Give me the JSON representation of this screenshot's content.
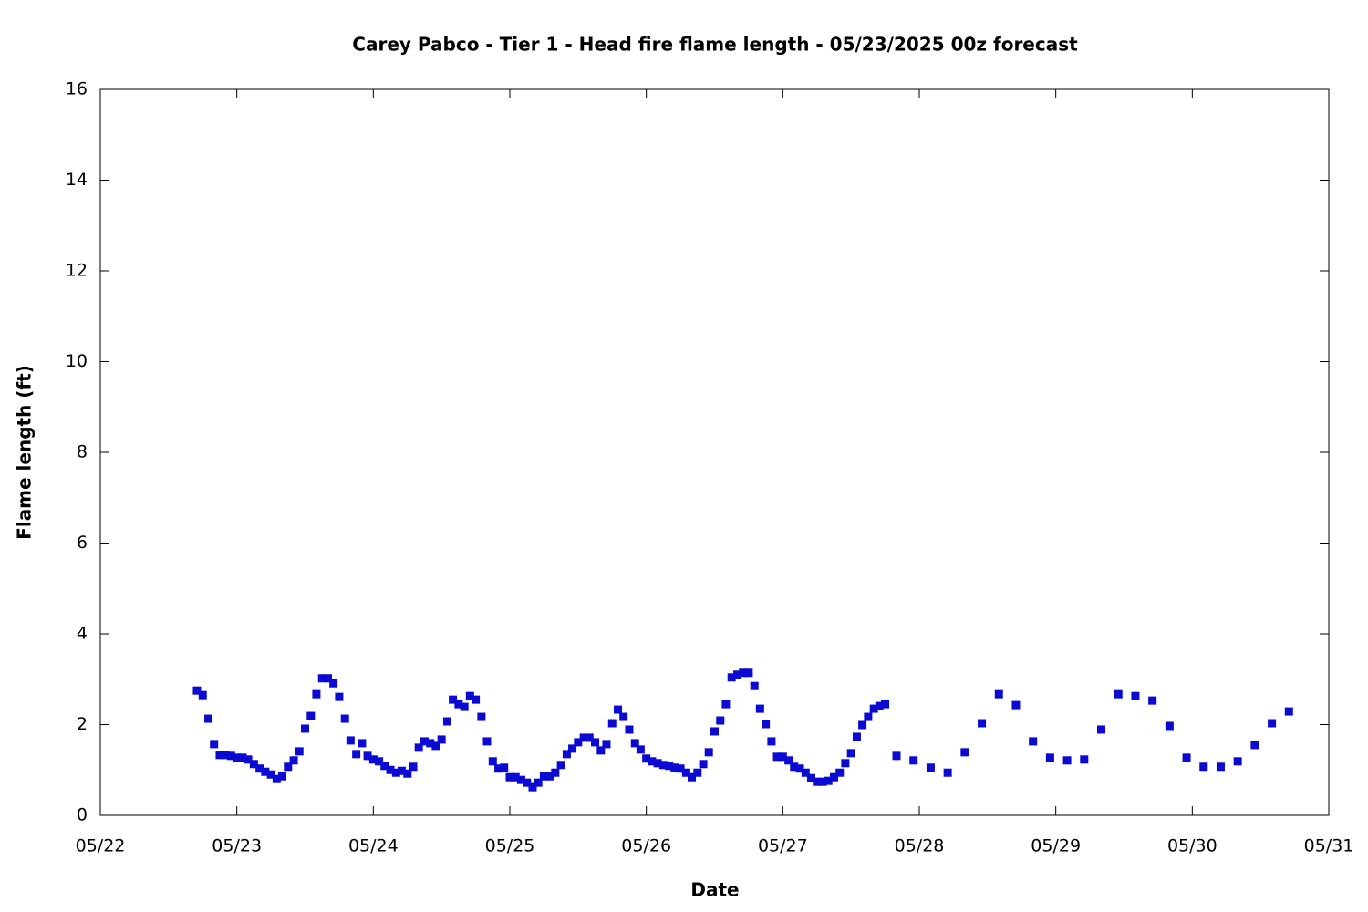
{
  "chart_data": {
    "type": "scatter",
    "title": "Carey Pabco - Tier 1 - Head fire flame length - 05/23/2025 00z forecast",
    "x_label": "Date",
    "y_label": "Flame length (ft)",
    "color": "#0a0ad2",
    "x": [
      22.708,
      22.75,
      22.792,
      22.833,
      22.875,
      22.917,
      22.958,
      23,
      23.042,
      23.083,
      23.125,
      23.167,
      23.208,
      23.25,
      23.292,
      23.333,
      23.375,
      23.417,
      23.458,
      23.5,
      23.542,
      23.583,
      23.625,
      23.667,
      23.708,
      23.75,
      23.792,
      23.833,
      23.875,
      23.917,
      23.958,
      24,
      24.042,
      24.083,
      24.125,
      24.167,
      24.208,
      24.25,
      24.292,
      24.333,
      24.375,
      24.417,
      24.458,
      24.5,
      24.542,
      24.583,
      24.625,
      24.667,
      24.708,
      24.75,
      24.792,
      24.833,
      24.875,
      24.917,
      24.958,
      25,
      25.042,
      25.083,
      25.125,
      25.167,
      25.208,
      25.25,
      25.292,
      25.333,
      25.375,
      25.417,
      25.458,
      25.5,
      25.542,
      25.583,
      25.625,
      25.667,
      25.708,
      25.75,
      25.792,
      25.833,
      25.875,
      25.917,
      25.958,
      26,
      26.042,
      26.083,
      26.125,
      26.167,
      26.208,
      26.25,
      26.292,
      26.333,
      26.375,
      26.417,
      26.458,
      26.5,
      26.542,
      26.583,
      26.625,
      26.667,
      26.708,
      26.75,
      26.792,
      26.833,
      26.875,
      26.917,
      26.958,
      27,
      27.042,
      27.083,
      27.125,
      27.167,
      27.208,
      27.25,
      27.292,
      27.333,
      27.375,
      27.417,
      27.458,
      27.5,
      27.542,
      27.583,
      27.625,
      27.667,
      27.708,
      27.75,
      27.833,
      27.958,
      28.083,
      28.208,
      28.333,
      28.458,
      28.583,
      28.708,
      28.833,
      28.958,
      29.083,
      29.208,
      29.333,
      29.458,
      29.583,
      29.708,
      29.833,
      29.958,
      30.083,
      30.208,
      30.333,
      30.458,
      30.583,
      30.708
    ],
    "values": [
      2.75,
      2.65,
      2.13,
      1.57,
      1.33,
      1.33,
      1.31,
      1.27,
      1.27,
      1.23,
      1.13,
      1.03,
      0.96,
      0.9,
      0.8,
      0.86,
      1.07,
      1.21,
      1.41,
      1.91,
      2.19,
      2.67,
      3.02,
      3.02,
      2.91,
      2.61,
      2.13,
      1.65,
      1.35,
      1.59,
      1.31,
      1.23,
      1.19,
      1.09,
      1.0,
      0.94,
      0.98,
      0.92,
      1.07,
      1.49,
      1.63,
      1.59,
      1.53,
      1.67,
      2.07,
      2.55,
      2.45,
      2.39,
      2.63,
      2.55,
      2.17,
      1.63,
      1.19,
      1.03,
      1.05,
      0.84,
      0.84,
      0.78,
      0.72,
      0.62,
      0.72,
      0.86,
      0.86,
      0.94,
      1.11,
      1.35,
      1.47,
      1.61,
      1.71,
      1.71,
      1.61,
      1.43,
      1.57,
      2.03,
      2.33,
      2.17,
      1.89,
      1.59,
      1.45,
      1.25,
      1.19,
      1.15,
      1.11,
      1.09,
      1.05,
      1.03,
      0.94,
      0.84,
      0.94,
      1.13,
      1.39,
      1.85,
      2.09,
      2.45,
      3.04,
      3.1,
      3.14,
      3.14,
      2.85,
      2.35,
      2.01,
      1.63,
      1.29,
      1.29,
      1.21,
      1.07,
      1.03,
      0.94,
      0.82,
      0.74,
      0.74,
      0.76,
      0.84,
      0.94,
      1.15,
      1.37,
      1.73,
      1.99,
      2.17,
      2.35,
      2.41,
      2.45,
      1.31,
      1.21,
      1.05,
      0.94,
      1.39,
      2.03,
      2.67,
      2.43,
      1.63,
      1.27,
      1.21,
      1.23,
      1.89,
      2.67,
      2.63,
      2.53,
      1.97,
      1.27,
      1.07,
      1.07,
      1.19,
      1.55,
      2.03,
      2.29
    ],
    "xlim": [
      22,
      31
    ],
    "xticks": [
      {
        "value": 22,
        "label": "05/22"
      },
      {
        "value": 23,
        "label": "05/23"
      },
      {
        "value": 24,
        "label": "05/24"
      },
      {
        "value": 25,
        "label": "05/25"
      },
      {
        "value": 26,
        "label": "05/26"
      },
      {
        "value": 27,
        "label": "05/27"
      },
      {
        "value": 28,
        "label": "05/28"
      },
      {
        "value": 29,
        "label": "05/29"
      },
      {
        "value": 30,
        "label": "05/30"
      },
      {
        "value": 31,
        "label": "05/31"
      }
    ],
    "ylim": [
      0,
      16
    ],
    "yticks": [
      0,
      2,
      4,
      6,
      8,
      10,
      12,
      14,
      16
    ],
    "grid": false
  }
}
